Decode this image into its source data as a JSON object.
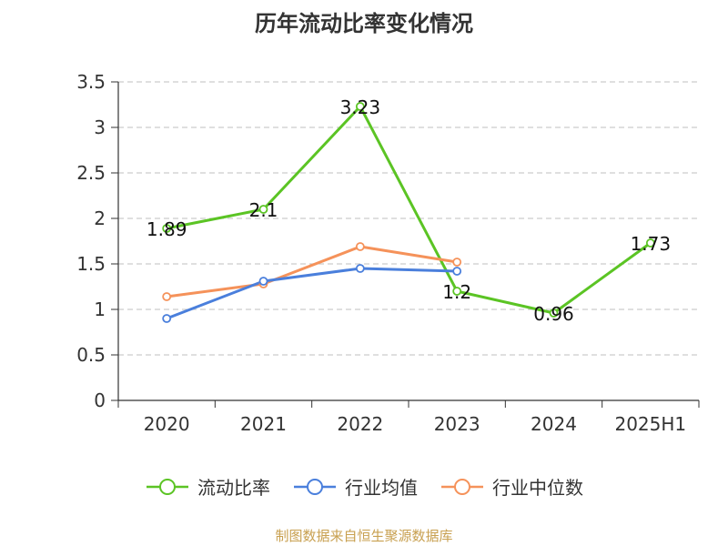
{
  "chart_data": {
    "type": "line",
    "title": "历年流动比率变化情况",
    "categories": [
      "2020",
      "2021",
      "2022",
      "2023",
      "2024",
      "2025H1"
    ],
    "ylim": [
      0,
      3.5
    ],
    "yticks": [
      "0",
      "0.5",
      "1",
      "1.5",
      "2",
      "2.5",
      "3",
      "3.5"
    ],
    "grid": true,
    "legend_position": "bottom",
    "series": [
      {
        "name": "流动比率",
        "color": "#5bc424",
        "values": [
          1.89,
          2.1,
          3.23,
          1.2,
          0.96,
          1.73
        ],
        "labels": [
          "1.89",
          "2.1",
          "3.23",
          "1.2",
          "0.96",
          "1.73"
        ]
      },
      {
        "name": "行业均值",
        "color": "#4a7fdc",
        "values": [
          0.9,
          1.31,
          1.45,
          1.42,
          null,
          null
        ]
      },
      {
        "name": "行业中位数",
        "color": "#f5925a",
        "values": [
          1.14,
          1.28,
          1.69,
          1.52,
          null,
          null
        ]
      }
    ]
  },
  "source": "制图数据来自恒生聚源数据库"
}
